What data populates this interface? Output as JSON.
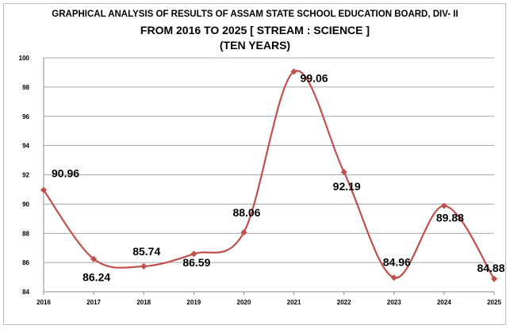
{
  "titles": [
    "GRAPHICAL ANALYSIS OF RESULTS OF ASSAM STATE SCHOOL EDUCATION BOARD, DIV- II",
    "FROM 2016 TO 2025 [ STREAM : SCIENCE ]",
    "(TEN YEARS)"
  ],
  "colors": {
    "line": "#c0504d",
    "grid": "#8c8c8c"
  },
  "chart_data": {
    "type": "line",
    "title": "GRAPHICAL ANALYSIS OF RESULTS OF ASSAM STATE SCHOOL EDUCATION BOARD, DIV- II FROM 2016 TO 2025 [ STREAM : SCIENCE ] (TEN YEARS)",
    "categories": [
      "2016",
      "2017",
      "2018",
      "2019",
      "2020",
      "2021",
      "2022",
      "2023",
      "2024",
      "2025"
    ],
    "series": [
      {
        "values": [
          90.96,
          86.24,
          85.74,
          86.59,
          88.06,
          99.06,
          92.19,
          84.96,
          89.88,
          84.88
        ]
      }
    ],
    "data_labels": [
      "90.96",
      "86.24",
      "85.74",
      "86.59",
      "88.06",
      "99.06",
      "92.19",
      "84.96",
      "89.88",
      "84.88"
    ],
    "ylim": [
      84,
      100
    ],
    "yticks": [
      84,
      86,
      88,
      90,
      92,
      94,
      96,
      98,
      100
    ],
    "smooth": true,
    "marker": "diamond",
    "grid": true,
    "legend": "none"
  }
}
